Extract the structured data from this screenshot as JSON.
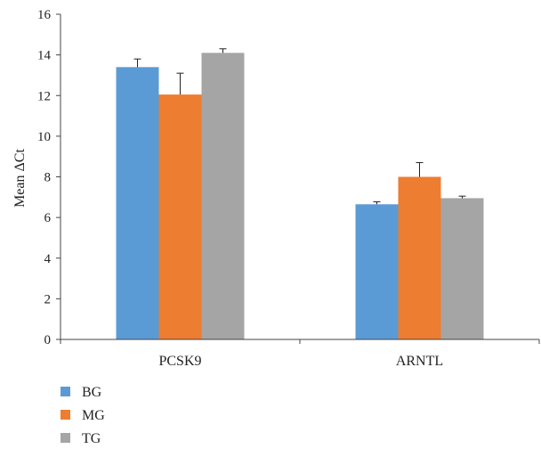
{
  "chart_data": {
    "type": "bar",
    "title": "",
    "xlabel": "",
    "ylabel": "Mean ΔCt",
    "ylim": [
      0,
      16
    ],
    "yticks": [
      0,
      2,
      4,
      6,
      8,
      10,
      12,
      14,
      16
    ],
    "grid": false,
    "legend_position": "bottom-left",
    "categories": [
      "PCSK9",
      "ARNTL"
    ],
    "series": [
      {
        "name": "BG",
        "color": "#5b9bd5",
        "values": [
          13.4,
          6.65
        ],
        "errors": [
          0.4,
          0.12
        ]
      },
      {
        "name": "MG",
        "color": "#ed7d31",
        "values": [
          12.05,
          8.0
        ],
        "errors": [
          1.05,
          0.7
        ]
      },
      {
        "name": "TG",
        "color": "#a5a5a5",
        "values": [
          14.1,
          6.95
        ],
        "errors": [
          0.2,
          0.1
        ]
      }
    ]
  }
}
